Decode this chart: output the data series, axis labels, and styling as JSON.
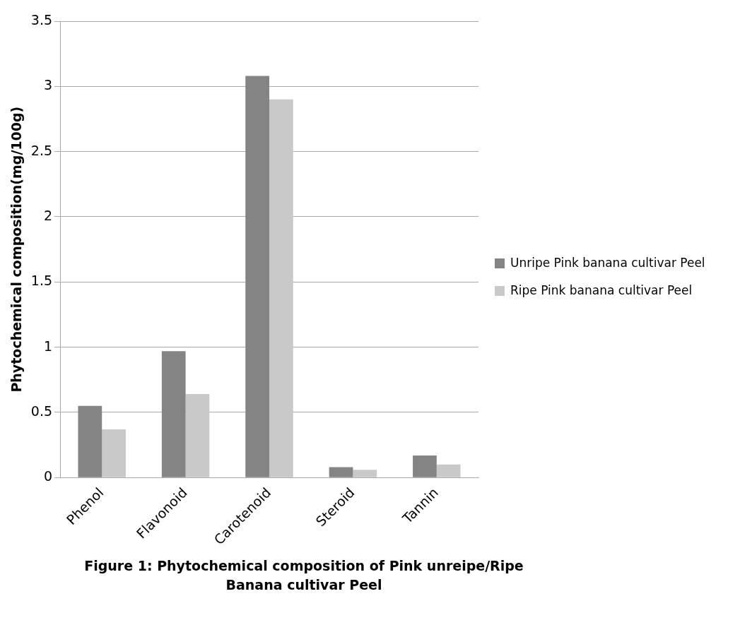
{
  "chart_data": {
    "type": "bar",
    "title": "Figure  1:  Phytochemical composition of Pink unreipe/Ripe Banana cultivar Peel",
    "ylabel": "Phytochemical composition(mg/100g)",
    "categories": [
      "Phenol",
      "Flavonoid",
      "Carotenoid",
      "Steroid",
      "Tannin"
    ],
    "series": [
      {
        "name": "Unripe Pink banana cultivar Peel",
        "color": "#848484",
        "values": [
          0.55,
          0.97,
          3.08,
          0.08,
          0.17
        ]
      },
      {
        "name": "Ripe Pink banana cultivar Peel",
        "color": "#c9c9c9",
        "values": [
          0.37,
          0.64,
          2.9,
          0.06,
          0.1
        ]
      }
    ],
    "ylim": [
      0,
      3.5
    ],
    "yticks": [
      0,
      0.5,
      1,
      1.5,
      2,
      2.5,
      3,
      3.5
    ],
    "grid": "y",
    "legend": "right"
  }
}
